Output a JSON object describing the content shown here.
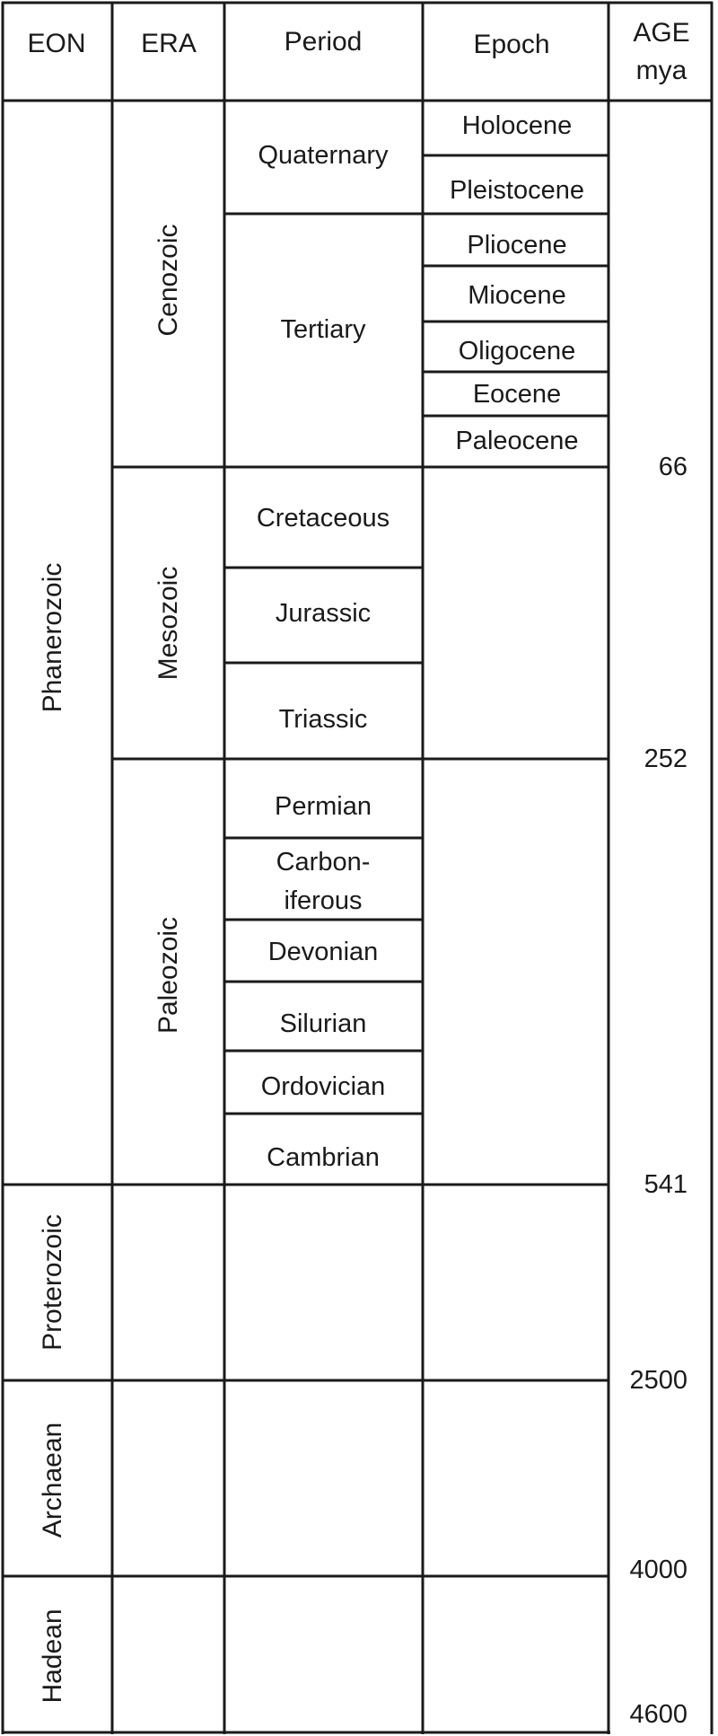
{
  "headers": {
    "eon": "EON",
    "era": "ERA",
    "period": "Period",
    "epoch": "Epoch",
    "age_line1": "AGE",
    "age_line2": "mya"
  },
  "eons": [
    "Phanerozoic",
    "Proterozoic",
    "Archaean",
    "Hadean"
  ],
  "eras": [
    "Cenozoic",
    "Mesozoic",
    "Paleozoic"
  ],
  "periods": [
    "Quaternary",
    "Tertiary",
    "Cretaceous",
    "Jurassic",
    "Triassic",
    "Permian",
    "Carbon-",
    "iferous",
    "Devonian",
    "Silurian",
    "Ordovician",
    "Cambrian"
  ],
  "epochs": [
    "Holocene",
    "Pleistocene",
    "Pliocene",
    "Miocene",
    "Oligocene",
    "Eocene",
    "Paleocene"
  ],
  "ages": [
    "66",
    "252",
    "541",
    "2500",
    "4000",
    "4600"
  ]
}
